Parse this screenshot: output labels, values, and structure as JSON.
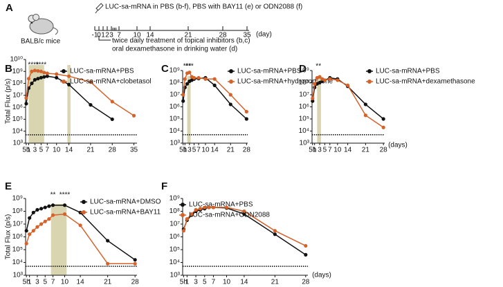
{
  "panel_a": {
    "panel": "A",
    "mouse_label": "BALB/c mice",
    "injection": "LUC-sa-mRNA in PBS (b-f), PBS with BAY11 (e) or ODN2088 (f)",
    "ticks": [
      -1,
      0,
      1,
      2,
      3,
      7,
      10,
      14,
      21,
      28,
      35
    ],
    "unit": "(day)",
    "treatments": [
      "twice daily treatment of topical inhibitors (b,c)",
      "oral dexamethasone in drinking water (d)"
    ]
  },
  "chart_data": [
    {
      "type": "line",
      "panel": "B",
      "log_y": true,
      "y_label": "Total Flux (p/s)",
      "xlim": [
        0,
        36
      ],
      "xticks": [
        {
          "value": 0.21,
          "label": "5h"
        },
        1,
        3,
        5,
        7,
        10,
        14,
        21,
        28,
        35
      ],
      "ylim": [
        1000,
        10000000000
      ],
      "yticks": [
        {
          "value": 1000,
          "label": "10³"
        },
        {
          "value": 10000,
          "label": "10⁴"
        },
        {
          "value": 100000,
          "label": "10⁵"
        },
        {
          "value": 1000000,
          "label": "10⁶"
        },
        {
          "value": 10000000,
          "label": "10⁷"
        },
        {
          "value": 100000000,
          "label": "10⁸"
        },
        {
          "value": 1000000000,
          "label": "10⁹"
        },
        {
          "value": 10000000000,
          "label": "10¹⁰"
        }
      ],
      "detection_limit": 5000,
      "shaded": [
        [
          1,
          6
        ],
        [
          13.5,
          14.5
        ]
      ],
      "annotations": [
        "****",
        "****",
        "*"
      ],
      "series": [
        {
          "name": "LUC-sa-mRNA+PBS",
          "color": "#111111",
          "x": [
            0.21,
            1,
            2,
            3,
            4,
            5,
            6,
            7,
            10,
            14,
            21,
            28
          ],
          "values": [
            2000000,
            40000000,
            100000000,
            200000000,
            250000000,
            300000000,
            350000000,
            400000000,
            300000000,
            80000000,
            1600000,
            100000
          ]
        },
        {
          "name": "LUC-sa-mRNA+clobetasol",
          "color": "#d4622b",
          "x": [
            0.21,
            1,
            2,
            3,
            4,
            5,
            6,
            7,
            10,
            14,
            21,
            28,
            35
          ],
          "values": [
            6000000,
            250000000,
            1000000000,
            1200000000,
            1100000000,
            1000000000,
            800000000,
            700000000,
            600000000,
            400000000,
            130000000,
            3000000,
            200000
          ]
        }
      ]
    },
    {
      "type": "line",
      "panel": "C",
      "log_y": true,
      "xlim": [
        0,
        28.5
      ],
      "xticks": [
        {
          "value": 0.21,
          "label": "5h"
        },
        1,
        3,
        5,
        7,
        10,
        14,
        21,
        28
      ],
      "ylim": [
        1000,
        1000000000
      ],
      "yticks": [
        {
          "value": 1000,
          "label": "10³"
        },
        {
          "value": 10000,
          "label": "10⁴"
        },
        {
          "value": 100000,
          "label": "10⁵"
        },
        {
          "value": 1000000,
          "label": "10⁶"
        },
        {
          "value": 10000000,
          "label": "10⁷"
        },
        {
          "value": 100000000,
          "label": "10⁸"
        },
        {
          "value": 1000000000,
          "label": "10⁹"
        }
      ],
      "detection_limit": 5000,
      "shaded": [
        [
          2,
          3.5
        ]
      ],
      "annotations": [
        "***",
        "***"
      ],
      "series": [
        {
          "name": "LUC-sa-mRNA+PBS",
          "color": "#111111",
          "x": [
            0.21,
            1,
            2,
            3,
            4,
            5,
            7,
            10,
            14,
            21,
            28
          ],
          "values": [
            3000000,
            40000000,
            80000000,
            130000000,
            160000000,
            200000000,
            220000000,
            250000000,
            60000000,
            1600000,
            100000
          ]
        },
        {
          "name": "LUC-sa-mRNA+hydrocortisone",
          "color": "#d4622b",
          "x": [
            0.21,
            1,
            2,
            3,
            4,
            5,
            7,
            10,
            14,
            21,
            28
          ],
          "values": [
            10000000,
            200000000,
            600000000,
            700000000,
            300000000,
            250000000,
            250000000,
            200000000,
            200000000,
            10000000,
            400000
          ]
        }
      ]
    },
    {
      "type": "line",
      "panel": "D",
      "log_y": true,
      "x_unit": "(days)",
      "xlim": [
        0,
        28.5
      ],
      "xticks": [
        {
          "value": 0.21,
          "label": "5h"
        },
        1,
        3,
        5,
        7,
        10,
        14,
        21,
        28
      ],
      "ylim": [
        1000,
        1000000000
      ],
      "yticks": [
        {
          "value": 1000,
          "label": "10³"
        },
        {
          "value": 10000,
          "label": "10⁴"
        },
        {
          "value": 100000,
          "label": "10⁵"
        },
        {
          "value": 1000000,
          "label": "10⁶"
        },
        {
          "value": 10000000,
          "label": "10⁷"
        },
        {
          "value": 100000000,
          "label": "10⁸"
        },
        {
          "value": 1000000000,
          "label": "10⁹"
        }
      ],
      "detection_limit": 5000,
      "shaded": [
        [
          2,
          3.5
        ]
      ],
      "annotations": [
        "**"
      ],
      "series": [
        {
          "name": "LUC-sa-mRNA+PBS",
          "color": "#111111",
          "x": [
            0.21,
            1,
            2,
            3,
            4,
            5,
            7,
            10,
            14,
            21,
            28
          ],
          "values": [
            3000000,
            40000000,
            80000000,
            100000000,
            130000000,
            160000000,
            250000000,
            200000000,
            50000000,
            1600000,
            100000
          ]
        },
        {
          "name": "LUC-sa-mRNA+dexamethasone",
          "color": "#d4622b",
          "x": [
            0.21,
            1,
            2,
            3,
            4,
            5,
            7,
            10,
            14,
            21,
            28
          ],
          "values": [
            5000000,
            80000000,
            250000000,
            300000000,
            200000000,
            160000000,
            200000000,
            160000000,
            60000000,
            200000,
            20000
          ]
        }
      ]
    },
    {
      "type": "line",
      "panel": "E",
      "log_y": true,
      "y_label": "Total Flux (p/s)",
      "xlim": [
        0,
        28.5
      ],
      "xticks": [
        {
          "value": 0.21,
          "label": "5h"
        },
        1,
        3,
        5,
        7,
        10,
        14,
        21,
        28
      ],
      "ylim": [
        1000,
        1000000000
      ],
      "yticks": [
        {
          "value": 1000,
          "label": "10³"
        },
        {
          "value": 10000,
          "label": "10⁴"
        },
        {
          "value": 100000,
          "label": "10⁵"
        },
        {
          "value": 1000000,
          "label": "10⁶"
        },
        {
          "value": 10000000,
          "label": "10⁷"
        },
        {
          "value": 100000000,
          "label": "10⁸"
        },
        {
          "value": 1000000000,
          "label": "10⁹"
        }
      ],
      "detection_limit": 5000,
      "shaded": [
        [
          6.5,
          10.5
        ]
      ],
      "annotations": [
        "**",
        "****"
      ],
      "series": [
        {
          "name": "LUC-sa-mRNA+DMSO",
          "color": "#111111",
          "x": [
            0.21,
            1,
            2,
            3,
            4,
            5,
            6,
            7,
            10,
            14,
            21,
            28
          ],
          "values": [
            3000000,
            30000000,
            80000000,
            130000000,
            160000000,
            200000000,
            250000000,
            300000000,
            300000000,
            80000000,
            500000,
            16000
          ]
        },
        {
          "name": "LUC-sa-mRNA+BAY11",
          "color": "#d4622b",
          "x": [
            0.21,
            1,
            2,
            3,
            4,
            5,
            6,
            7,
            10,
            14,
            21,
            28
          ],
          "values": [
            300000,
            1600000,
            3000000,
            6000000,
            10000000,
            16000000,
            25000000,
            50000000,
            60000000,
            8000000,
            8000,
            8000
          ]
        }
      ]
    },
    {
      "type": "line",
      "panel": "F",
      "log_y": true,
      "x_unit": "(days)",
      "xlim": [
        0,
        28.5
      ],
      "xticks": [
        {
          "value": 0.21,
          "label": "5h"
        },
        1,
        3,
        5,
        7,
        10,
        14,
        21,
        28
      ],
      "ylim": [
        1000,
        1000000000
      ],
      "yticks": [
        {
          "value": 1000,
          "label": "10³"
        },
        {
          "value": 10000,
          "label": "10⁴"
        },
        {
          "value": 100000,
          "label": "10⁵"
        },
        {
          "value": 1000000,
          "label": "10⁶"
        },
        {
          "value": 10000000,
          "label": "10⁷"
        },
        {
          "value": 100000000,
          "label": "10⁸"
        },
        {
          "value": 1000000000,
          "label": "10⁹"
        }
      ],
      "detection_limit": 5000,
      "series": [
        {
          "name": "LUC-sa-mRNA+PBS",
          "color": "#111111",
          "x": [
            0.21,
            1,
            2,
            3,
            4,
            5,
            6,
            7,
            10,
            14,
            21,
            28
          ],
          "values": [
            4000000,
            20000000,
            50000000,
            100000000,
            130000000,
            160000000,
            200000000,
            200000000,
            180000000,
            60000000,
            1600000,
            40000
          ]
        },
        {
          "name": "LUC-sa-mRNA+ODN2088",
          "color": "#d4622b",
          "x": [
            0.21,
            1,
            2,
            3,
            4,
            5,
            6,
            7,
            10,
            14,
            21,
            28
          ],
          "values": [
            3000000,
            25000000,
            60000000,
            130000000,
            160000000,
            200000000,
            200000000,
            200000000,
            200000000,
            100000000,
            3000000,
            200000
          ]
        }
      ]
    }
  ]
}
